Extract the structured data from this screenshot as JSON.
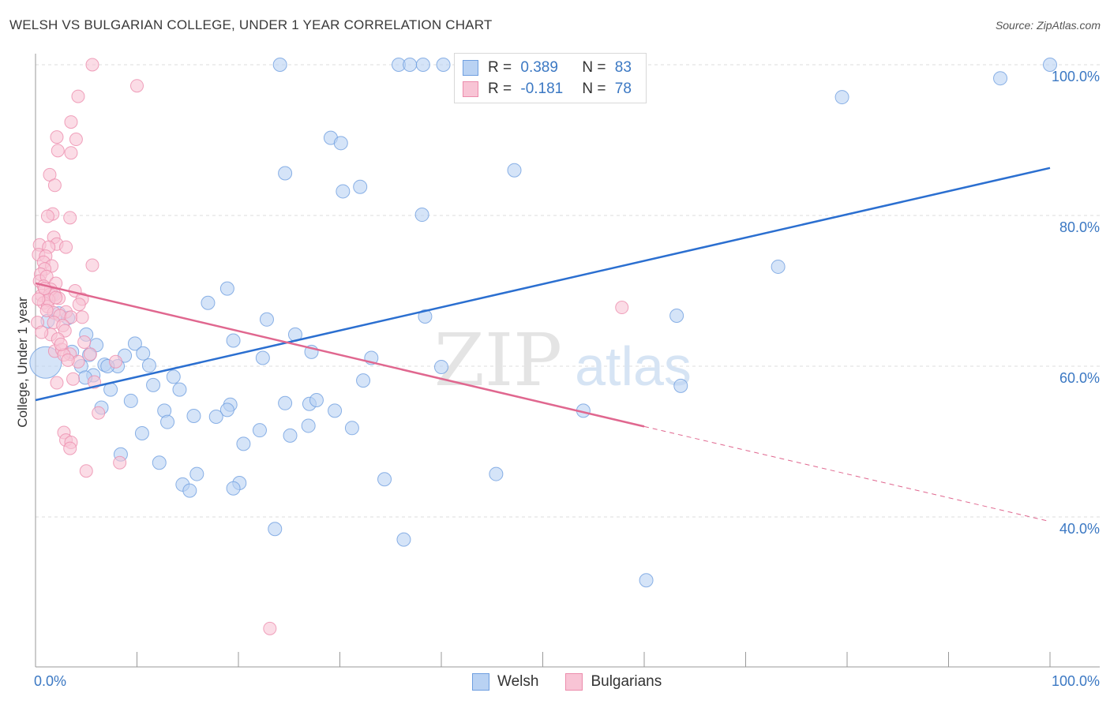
{
  "title": "WELSH VS BULGARIAN COLLEGE, UNDER 1 YEAR CORRELATION CHART",
  "source": "Source: ZipAtlas.com",
  "colors": {
    "welsh_fill": "#b9d2f3",
    "welsh_stroke": "#6f9fe0",
    "welsh_line": "#2b6fd0",
    "bulgarian_fill": "#f8c4d5",
    "bulgarian_stroke": "#ec8cac",
    "bulgarian_line": "#e0678f",
    "value_text": "#3b78c3",
    "grid": "#dddddd"
  },
  "legend_top": {
    "rows": [
      {
        "r_label": "R = ",
        "r_value": "0.389",
        "n_label": "N = ",
        "n_value": "83"
      },
      {
        "r_label": "R = ",
        "r_value": "-0.181",
        "n_label": "N = ",
        "n_value": "78"
      }
    ]
  },
  "legend_bottom": [
    "Welsh",
    "Bulgarians"
  ],
  "watermark": {
    "zip": "ZIP",
    "atlas": "atlas"
  },
  "chart_data": {
    "type": "scatter",
    "title": "WELSH VS BULGARIAN COLLEGE, UNDER 1 YEAR CORRELATION CHART",
    "xlabel": "",
    "ylabel": "College, Under 1 year",
    "xlim": [
      0,
      100
    ],
    "ylim": [
      20,
      102
    ],
    "x_tick_labels": [
      "0.0%",
      "100.0%"
    ],
    "y_tick_values": [
      40,
      60,
      80,
      100
    ],
    "y_tick_labels": [
      "40.0%",
      "60.0%",
      "80.0%",
      "100.0%"
    ],
    "grid": true,
    "legend_position": "top-center",
    "series": [
      {
        "name": "Welsh",
        "R": 0.389,
        "N": 83,
        "trend": {
          "x": [
            0,
            100
          ],
          "y": [
            55.5,
            86.3
          ]
        },
        "points": [
          [
            24.1,
            100
          ],
          [
            35.8,
            100
          ],
          [
            36.9,
            100
          ],
          [
            38.2,
            100
          ],
          [
            40.2,
            100
          ],
          [
            100,
            100
          ],
          [
            95.1,
            98.2
          ],
          [
            79.5,
            95.7
          ],
          [
            29.1,
            90.3
          ],
          [
            30.1,
            89.6
          ],
          [
            47.2,
            86
          ],
          [
            24.6,
            85.6
          ],
          [
            32,
            83.8
          ],
          [
            30.3,
            83.2
          ],
          [
            38.1,
            80.1
          ],
          [
            73.2,
            73.2
          ],
          [
            18.9,
            70.3
          ],
          [
            17,
            68.4
          ],
          [
            2.3,
            67
          ],
          [
            1.6,
            69.5
          ],
          [
            1.2,
            66
          ],
          [
            3.2,
            66.4
          ],
          [
            38.4,
            66.6
          ],
          [
            22.8,
            66.2
          ],
          [
            63.2,
            66.7
          ],
          [
            5,
            64.2
          ],
          [
            25.6,
            64.2
          ],
          [
            6,
            62.8
          ],
          [
            19.5,
            63.4
          ],
          [
            9.8,
            63
          ],
          [
            27.2,
            61.9
          ],
          [
            10.6,
            61.7
          ],
          [
            8.8,
            61.4
          ],
          [
            5.3,
            61.5
          ],
          [
            22.4,
            61.1
          ],
          [
            33.1,
            61.1
          ],
          [
            4.5,
            60
          ],
          [
            6.8,
            60.2
          ],
          [
            8.1,
            60
          ],
          [
            11.2,
            60.1
          ],
          [
            40,
            59.9
          ],
          [
            5.7,
            58.8
          ],
          [
            4.9,
            58.5
          ],
          [
            13.6,
            58.6
          ],
          [
            32.3,
            58.1
          ],
          [
            11.6,
            57.5
          ],
          [
            14.2,
            56.9
          ],
          [
            7.4,
            56.9
          ],
          [
            63.6,
            57.4
          ],
          [
            9.4,
            55.4
          ],
          [
            24.6,
            55.1
          ],
          [
            27,
            55
          ],
          [
            27.7,
            55.5
          ],
          [
            19.2,
            54.9
          ],
          [
            6.5,
            54.5
          ],
          [
            12.7,
            54.1
          ],
          [
            18.9,
            54.2
          ],
          [
            29.5,
            54.1
          ],
          [
            54,
            54.1
          ],
          [
            15.6,
            53.4
          ],
          [
            17.8,
            53.3
          ],
          [
            13,
            52.6
          ],
          [
            26.9,
            52.1
          ],
          [
            22.1,
            51.5
          ],
          [
            31.2,
            51.8
          ],
          [
            10.5,
            51.1
          ],
          [
            25.1,
            50.8
          ],
          [
            20.5,
            49.7
          ],
          [
            8.4,
            48.3
          ],
          [
            12.2,
            47.2
          ],
          [
            45.4,
            45.7
          ],
          [
            15.9,
            45.7
          ],
          [
            34.4,
            45
          ],
          [
            20.1,
            44.5
          ],
          [
            14.5,
            44.3
          ],
          [
            19.5,
            43.8
          ],
          [
            15.2,
            43.5
          ],
          [
            23.6,
            38.4
          ],
          [
            36.3,
            37
          ],
          [
            60.2,
            31.6
          ],
          [
            3.6,
            61.9
          ],
          [
            7.1,
            60
          ],
          [
            1,
            60.5
          ]
        ]
      },
      {
        "name": "Bulgarians",
        "R": -0.181,
        "N": 78,
        "trend": {
          "x": [
            0,
            60
          ],
          "y": [
            71,
            52
          ]
        },
        "trend_dashed": {
          "x": [
            60,
            100
          ],
          "y": [
            52,
            39.4
          ]
        },
        "points": [
          [
            5.6,
            100
          ],
          [
            10,
            97.2
          ],
          [
            4.2,
            95.8
          ],
          [
            3.5,
            92.4
          ],
          [
            2.1,
            90.4
          ],
          [
            4,
            90.1
          ],
          [
            2.2,
            88.6
          ],
          [
            3.5,
            88.3
          ],
          [
            1.4,
            85.4
          ],
          [
            1.9,
            84
          ],
          [
            1.7,
            80.2
          ],
          [
            3.4,
            79.7
          ],
          [
            1.2,
            79.9
          ],
          [
            1.8,
            77.1
          ],
          [
            0.4,
            76.1
          ],
          [
            2.1,
            76.2
          ],
          [
            3,
            75.8
          ],
          [
            1.3,
            75.8
          ],
          [
            0.3,
            74.8
          ],
          [
            1,
            74.6
          ],
          [
            0.8,
            73.8
          ],
          [
            1.6,
            73.3
          ],
          [
            5.6,
            73.4
          ],
          [
            0.9,
            72.9
          ],
          [
            0.5,
            72.2
          ],
          [
            0.4,
            71.3
          ],
          [
            1.1,
            71.9
          ],
          [
            2,
            71
          ],
          [
            0.8,
            70.6
          ],
          [
            1.5,
            70.2
          ],
          [
            3.9,
            70
          ],
          [
            0.6,
            69.4
          ],
          [
            1.4,
            69.5
          ],
          [
            1.9,
            69.5
          ],
          [
            2.3,
            69
          ],
          [
            0.8,
            68.4
          ],
          [
            4.6,
            68.9
          ],
          [
            1.2,
            67.9
          ],
          [
            4.3,
            68.2
          ],
          [
            57.8,
            67.8
          ],
          [
            3,
            67.2
          ],
          [
            1.8,
            67.1
          ],
          [
            2.4,
            66.7
          ],
          [
            3.5,
            66.5
          ],
          [
            4.6,
            66.5
          ],
          [
            0.2,
            65.8
          ],
          [
            1.8,
            65.8
          ],
          [
            2.7,
            65.4
          ],
          [
            2.9,
            64.7
          ],
          [
            1.5,
            64.2
          ],
          [
            2.2,
            63.6
          ],
          [
            1.9,
            62
          ],
          [
            2.6,
            62.2
          ],
          [
            3.4,
            61.6
          ],
          [
            2.8,
            61.5
          ],
          [
            5.4,
            61.6
          ],
          [
            4.2,
            60.6
          ],
          [
            7.9,
            60.6
          ],
          [
            3.7,
            58.3
          ],
          [
            2.1,
            57.8
          ],
          [
            6.2,
            53.8
          ],
          [
            2.8,
            51.2
          ],
          [
            3,
            50.2
          ],
          [
            3.5,
            49.9
          ],
          [
            3.4,
            49.1
          ],
          [
            8.3,
            47.2
          ],
          [
            5,
            46.1
          ],
          [
            23.1,
            25.2
          ],
          [
            0.6,
            64.5
          ],
          [
            1.3,
            68.8
          ],
          [
            2.5,
            62.9
          ],
          [
            0.9,
            70.3
          ],
          [
            4.8,
            63.2
          ],
          [
            1.1,
            67.4
          ],
          [
            3.2,
            60.8
          ],
          [
            0.3,
            68.9
          ],
          [
            5.8,
            57.9
          ],
          [
            2,
            69.1
          ]
        ]
      }
    ]
  }
}
